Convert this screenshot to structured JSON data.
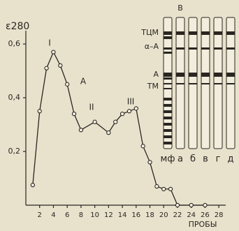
{
  "chart_data": {
    "type": "line",
    "y_label": "ε280",
    "x_label": "ПРОБЫ",
    "x": [
      1,
      2,
      3,
      4,
      5,
      6,
      7,
      8,
      10,
      12,
      13,
      14,
      15,
      16,
      17,
      18,
      19,
      20,
      21,
      22,
      24,
      26
    ],
    "values": [
      0.075,
      0.35,
      0.51,
      0.57,
      0.52,
      0.45,
      0.34,
      0.28,
      0.31,
      0.27,
      0.31,
      0.34,
      0.35,
      0.36,
      0.22,
      0.16,
      0.07,
      0.06,
      0.06,
      0,
      0,
      0
    ],
    "color": "#2a2520",
    "xlim": [
      0,
      29
    ],
    "ylim": [
      0,
      0.66
    ],
    "xticks": [
      2,
      4,
      6,
      8,
      10,
      12,
      14,
      16,
      18,
      20,
      22,
      24,
      26,
      28
    ],
    "yticks": [
      {
        "value": 0.2,
        "label": "0,2"
      },
      {
        "value": 0.4,
        "label": "0,4"
      },
      {
        "value": 0.6,
        "label": "0,6"
      }
    ],
    "annotations": [
      "I",
      "II",
      "III",
      "А"
    ]
  },
  "gel": {
    "title": "В",
    "lanes": [
      "мф",
      "а",
      "б",
      "в",
      "г",
      "д"
    ],
    "bands": [
      "ТЦМ",
      "α–А",
      "А",
      "ТМ"
    ]
  }
}
